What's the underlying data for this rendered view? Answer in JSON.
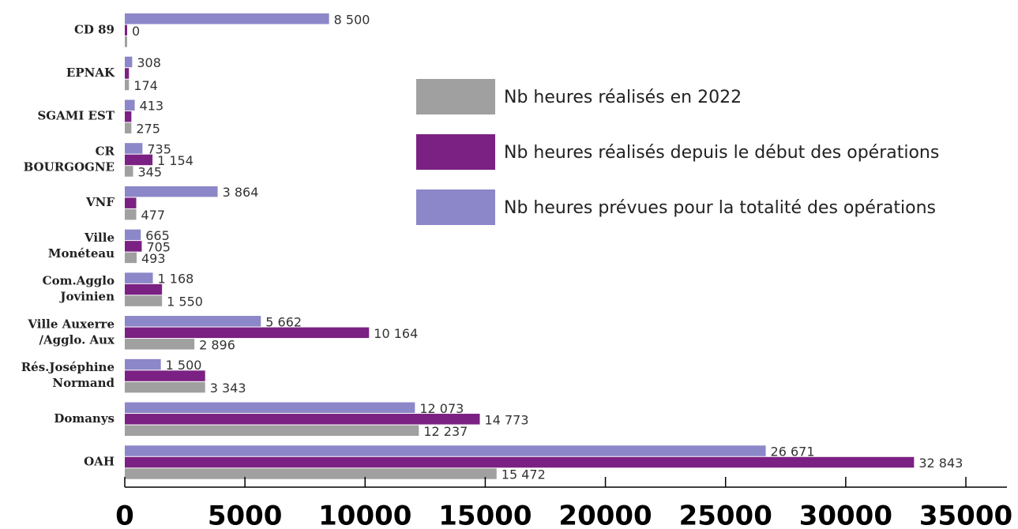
{
  "chart_data": {
    "type": "bar",
    "orientation": "horizontal",
    "categories": [
      [
        "CD 89"
      ],
      [
        "EPNAK"
      ],
      [
        "SGAMI EST"
      ],
      [
        "CR",
        "BOURGOGNE"
      ],
      [
        "VNF"
      ],
      [
        "Ville",
        "Monéteau"
      ],
      [
        "Com.Agglo",
        "Jovinien"
      ],
      [
        "Ville Auxerre",
        "/Agglo. Aux"
      ],
      [
        "Rés.Joséphine",
        "Normand"
      ],
      [
        "Domanys"
      ],
      [
        "OAH"
      ]
    ],
    "series": [
      {
        "name": "Nb heures prévues pour la totalité des opérations",
        "color": "#8b87c8",
        "values": [
          8500,
          308,
          413,
          735,
          3864,
          665,
          1168,
          5662,
          1500,
          12073,
          26671
        ],
        "value_labels": [
          "8 500",
          "308",
          "413",
          "735",
          "3 864",
          "665",
          "1 168",
          "5 662",
          "1 500",
          "12 073",
          "26 671"
        ]
      },
      {
        "name": "Nb heures réalisés depuis le début des opérations",
        "color": "#7b2183",
        "values": [
          0,
          174,
          275,
          1154,
          477,
          705,
          1550,
          10164,
          3343,
          14773,
          32843
        ],
        "value_labels": [
          "0",
          null,
          null,
          "1 154",
          null,
          "705",
          null,
          "10 164",
          null,
          "14 773",
          "32 843"
        ]
      },
      {
        "name": "Nb heures réalisés en 2022",
        "color": "#a0a0a0",
        "values": [
          0,
          174,
          275,
          345,
          477,
          493,
          1550,
          2896,
          3343,
          12237,
          15472
        ],
        "value_labels": [
          null,
          "174",
          "275",
          "345",
          "477",
          "493",
          "1 550",
          "2 896",
          "3 343",
          "12 237",
          "15 472"
        ]
      }
    ],
    "legend_order": [
      2,
      1,
      0
    ],
    "xlim": [
      0,
      35000
    ],
    "xticks": [
      0,
      5000,
      10000,
      15000,
      20000,
      25000,
      30000,
      35000
    ]
  }
}
